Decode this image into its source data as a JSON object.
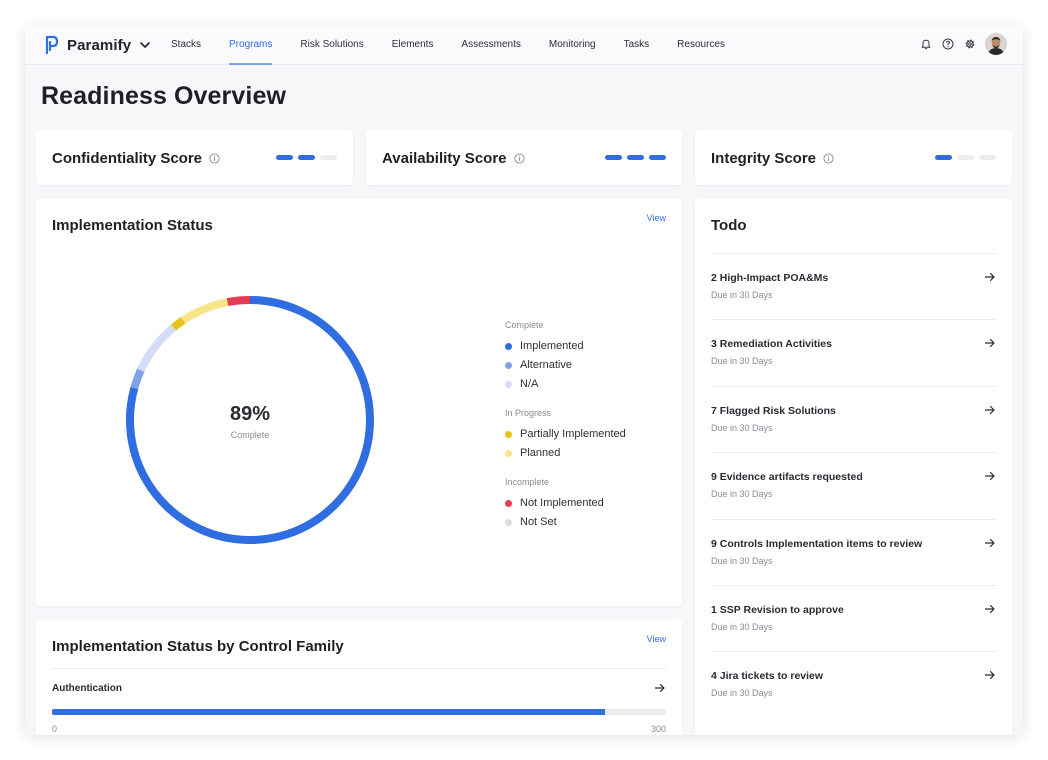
{
  "brand": {
    "name": "Paramify"
  },
  "nav": {
    "links": [
      "Stacks",
      "Programs",
      "Risk Solutions",
      "Elements",
      "Assessments",
      "Monitoring",
      "Tasks",
      "Resources"
    ],
    "active": "Programs",
    "icons": [
      "bell-icon",
      "help-icon",
      "gear-icon"
    ]
  },
  "page": {
    "title": "Readiness Overview"
  },
  "scores": [
    {
      "title": "Confidentiality Score",
      "level": 2,
      "max": 3
    },
    {
      "title": "Availability Score",
      "level": 3,
      "max": 3
    },
    {
      "title": "Integrity Score",
      "level": 1,
      "max": 3
    }
  ],
  "implementation": {
    "title": "Implementation Status",
    "view_label": "View",
    "percent_label": "89%",
    "percent_caption": "Complete",
    "legend": [
      {
        "group": "Complete",
        "items": [
          {
            "label": "Implemented",
            "color": "#2f6de0"
          },
          {
            "label": "Alternative",
            "color": "#7fa2ea"
          },
          {
            "label": "N/A",
            "color": "#d5dcf5"
          }
        ]
      },
      {
        "group": "In Progress",
        "items": [
          {
            "label": "Partially Implemented",
            "color": "#e9c21b"
          },
          {
            "label": "Planned",
            "color": "#f7e589"
          }
        ]
      },
      {
        "group": "Incomplete",
        "items": [
          {
            "label": "Not Implemented",
            "color": "#e63c53"
          },
          {
            "label": "Not Set",
            "color": "#dcdce2"
          }
        ]
      }
    ],
    "segments": [
      {
        "label": "Implemented",
        "share": 0.793,
        "color": "#2f6de0"
      },
      {
        "label": "Alternative",
        "share": 0.025,
        "color": "#7fa2ea"
      },
      {
        "label": "N/A",
        "share": 0.072,
        "color": "#d5dcf5"
      },
      {
        "label": "Partially Implemented",
        "share": 0.016,
        "color": "#e9c21b"
      },
      {
        "label": "Planned",
        "share": 0.064,
        "color": "#f7e589"
      },
      {
        "label": "Not Implemented",
        "share": 0.03,
        "color": "#e63c53"
      }
    ]
  },
  "family": {
    "title": "Implementation Status by Control Family",
    "view_label": "View",
    "rows": [
      {
        "name": "Authentication",
        "value": 270,
        "min": "0",
        "max": "300"
      }
    ]
  },
  "todo": {
    "title": "Todo",
    "items": [
      {
        "title": "2 High-Impact POA&Ms",
        "due": "Due in 30 Days"
      },
      {
        "title": "3 Remediation Activities",
        "due": "Due in 30 Days"
      },
      {
        "title": "7 Flagged Risk Solutions",
        "due": "Due in 30 Days"
      },
      {
        "title": "9 Evidence artifacts requested",
        "due": "Due in 30 Days"
      },
      {
        "title": "9 Controls Implementation items to review",
        "due": "Due in 30 Days"
      },
      {
        "title": "1 SSP Revision to approve",
        "due": "Due in 30 Days"
      },
      {
        "title": "4 Jira tickets to review",
        "due": "Due in 30 Days"
      }
    ]
  },
  "colors": {
    "accent": "#2f6de0",
    "text": "#1f1f24",
    "muted": "#8a8a94"
  }
}
